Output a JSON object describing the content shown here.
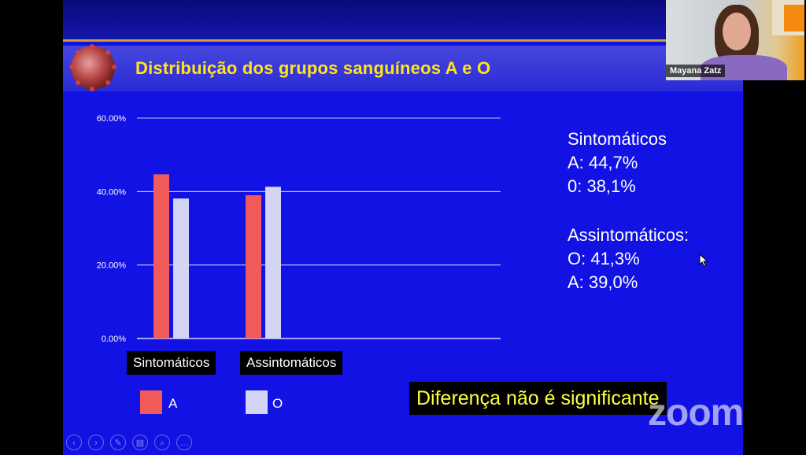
{
  "slide": {
    "title": "Distribuição dos grupos sanguíneos A e O",
    "note": "Diferença não é significante"
  },
  "chart_data": {
    "type": "bar",
    "categories": [
      "Sintomáticos",
      "Assintomáticos"
    ],
    "series": [
      {
        "name": "A",
        "values": [
          44.7,
          39.0
        ],
        "color": "#f25a5a"
      },
      {
        "name": "O",
        "values": [
          38.1,
          41.3
        ],
        "color": "#d4d4f4"
      }
    ],
    "yticks": [
      "0.00%",
      "20.00%",
      "40.00%",
      "60.00%"
    ],
    "ylim": [
      0,
      60
    ],
    "grid": true,
    "legend_position": "bottom-left"
  },
  "stats": {
    "symptomatic": {
      "heading": "Sintomáticos",
      "lines": [
        "A: 44,7%",
        "0: 38,1%"
      ]
    },
    "asymptomatic": {
      "heading": "Assintomáticos:",
      "lines": [
        "O: 41,3%",
        "A:  39,0%"
      ]
    }
  },
  "webcam": {
    "name": "Mayana Zatz"
  },
  "zoom": {
    "logo": "zoom"
  },
  "controls": [
    {
      "icon": "prev-icon",
      "glyph": "‹"
    },
    {
      "icon": "next-icon",
      "glyph": "›"
    },
    {
      "icon": "pen-icon",
      "glyph": "✎"
    },
    {
      "icon": "slides-icon",
      "glyph": "▤"
    },
    {
      "icon": "zoom-icon",
      "glyph": "⌕"
    },
    {
      "icon": "more-icon",
      "glyph": "…"
    }
  ]
}
